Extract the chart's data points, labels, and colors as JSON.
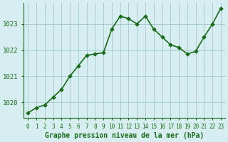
{
  "hours": [
    0,
    1,
    2,
    3,
    4,
    5,
    6,
    7,
    8,
    9,
    10,
    11,
    12,
    13,
    14,
    15,
    16,
    17,
    18,
    19,
    20,
    21,
    22,
    23
  ],
  "pressure": [
    1019.6,
    1019.8,
    1019.9,
    1020.2,
    1020.5,
    1021.0,
    1021.4,
    1021.8,
    1021.85,
    1021.9,
    1022.8,
    1023.3,
    1023.2,
    1023.0,
    1023.3,
    1022.8,
    1022.5,
    1022.2,
    1022.1,
    1021.85,
    1021.95,
    1022.5,
    1023.0,
    1023.6
  ],
  "line_color": "#1a6b1a",
  "marker_color": "#1a6b1a",
  "bg_color": "#d6eef0",
  "grid_color": "#aacccc",
  "axes_bg": "#d6eef0",
  "xlabel": "Graphe pression niveau de la mer (hPa)",
  "xlabel_color": "#1a6b1a",
  "tick_color": "#1a6b1a",
  "border_color": "#1a6b1a",
  "ylim": [
    1019.4,
    1023.8
  ],
  "yticks": [
    1020,
    1021,
    1022,
    1023
  ],
  "xticks": [
    0,
    1,
    2,
    3,
    4,
    5,
    6,
    7,
    8,
    9,
    10,
    11,
    12,
    13,
    14,
    15,
    16,
    17,
    18,
    19,
    20,
    21,
    22,
    23
  ]
}
